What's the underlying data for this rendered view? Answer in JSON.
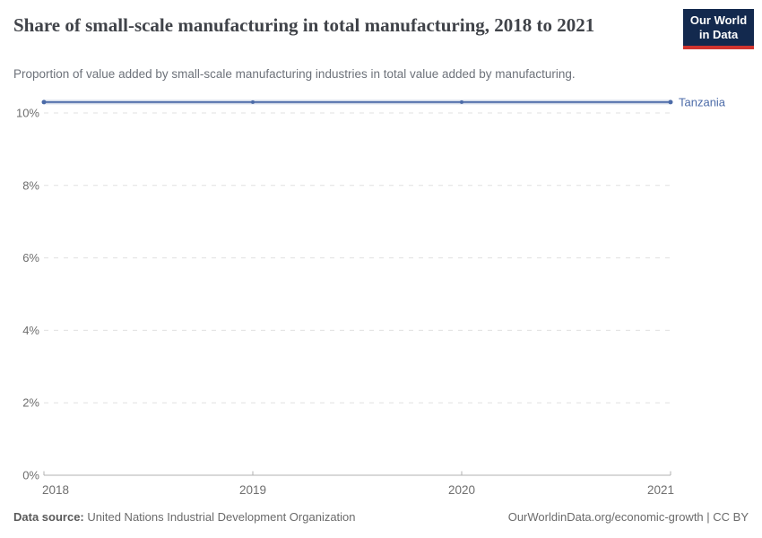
{
  "header": {
    "title": "Share of small-scale manufacturing in total manufacturing, 2018 to 2021",
    "subtitle": "Proportion of value added by small-scale manufacturing industries in total value added by manufacturing.",
    "logo": {
      "line1": "Our World",
      "line2": "in Data"
    }
  },
  "colors": {
    "series_line": "#4C6BA8",
    "entity_label": "#4C6BA8",
    "gridline": "#e0e0e0",
    "axis_line": "#b0b0b0",
    "tick_label": "#6e6e6e",
    "logo_bg": "#13294E",
    "logo_bar": "#D0342F"
  },
  "chart_data": {
    "type": "line",
    "x": [
      2018,
      2019,
      2020,
      2021
    ],
    "series": [
      {
        "name": "Tanzania",
        "values": [
          10.3,
          10.3,
          10.3,
          10.3
        ],
        "color": "#4C6BA8"
      }
    ],
    "title": "Share of small-scale manufacturing in total manufacturing, 2018 to 2021",
    "xlabel": "",
    "ylabel": "",
    "yticks": [
      0,
      2,
      4,
      6,
      8,
      10
    ],
    "ytick_suffix": "%",
    "ylim": [
      0,
      10.4
    ],
    "grid": "horizontal-dashed",
    "legend_position": "entity-label-at-line-end"
  },
  "footer": {
    "datasource_label": "Data source:",
    "datasource_text": " United Nations Industrial Development Organization",
    "credit": "OurWorldinData.org/economic-growth | CC BY"
  }
}
